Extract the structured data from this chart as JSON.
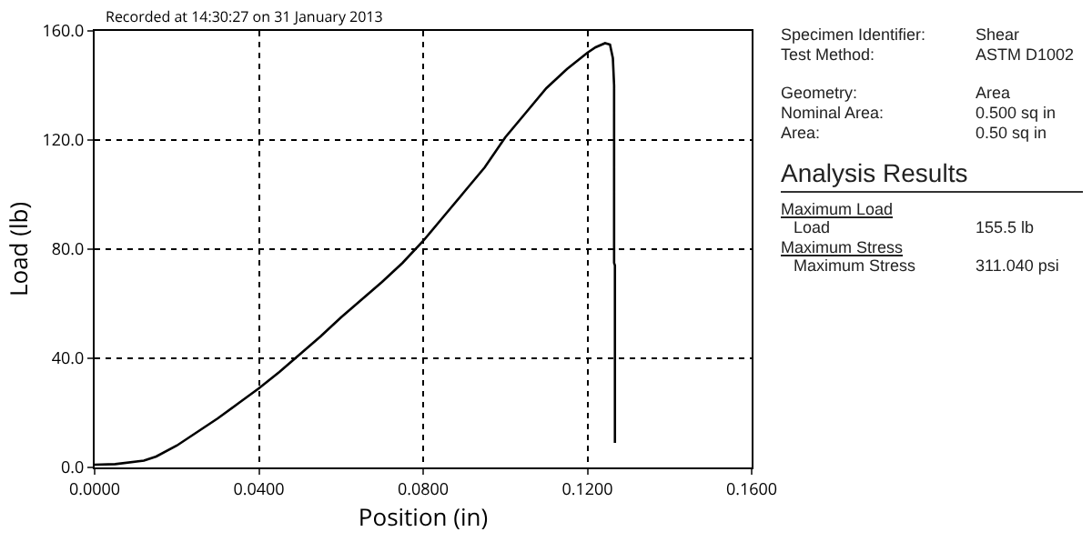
{
  "chart_data": [
    {
      "type": "line",
      "xlabel": "Position (in)",
      "ylabel": "Load (lb)",
      "annotations": [
        "Recorded at 14:30:27 on 31 January 2013"
      ],
      "x": [
        0,
        0.005,
        0.012,
        0.015,
        0.02,
        0.025,
        0.03,
        0.035,
        0.04,
        0.045,
        0.05,
        0.055,
        0.06,
        0.065,
        0.07,
        0.075,
        0.08,
        0.085,
        0.09,
        0.095,
        0.1,
        0.105,
        0.11,
        0.115,
        0.12,
        0.122,
        0.1243,
        0.1255,
        0.1262,
        0.1265,
        0.1265,
        0.1267,
        0.1267
      ],
      "series": [
        {
          "color": "#000000",
          "values": [
            1,
            1.2,
            2.5,
            4,
            8,
            13,
            18,
            23.5,
            29,
            35,
            41.5,
            48,
            55,
            61.5,
            68,
            75,
            83,
            92,
            101,
            110,
            121,
            130,
            139,
            146,
            152,
            154,
            155.5,
            155,
            150,
            140,
            75,
            74,
            9
          ]
        }
      ],
      "xlim": [
        0,
        0.16
      ],
      "xticks": [
        {
          "value": 0,
          "label": "0.0000"
        },
        {
          "value": 0.04,
          "label": "0.0400"
        },
        {
          "value": 0.08,
          "label": "0.0800"
        },
        {
          "value": 0.12,
          "label": "0.1200"
        },
        {
          "value": 0.16,
          "label": "0.1600"
        }
      ],
      "ylim": [
        0,
        160
      ],
      "yticks": [
        {
          "value": 0,
          "label": "0.0"
        },
        {
          "value": 40,
          "label": "40.0"
        },
        {
          "value": 80,
          "label": "80.0"
        },
        {
          "value": 120,
          "label": "120.0"
        },
        {
          "value": 160,
          "label": "160.0"
        }
      ],
      "grid": true,
      "marker": "none",
      "line_style": "solid"
    },
    {
      "type": "other",
      "title": "Analysis Results",
      "annotations": [
        "Specimen Identifier:",
        "Shear",
        "Test Method:",
        "ASTM D1002",
        "Geometry:",
        "Area",
        "Nominal Area:",
        "0.500 sq in",
        "Area:",
        "0.50 sq in",
        "Maximum Load",
        "Load",
        "155.5 lb",
        "Maximum Stress",
        "Maximum Stress",
        "311.040 psi"
      ]
    }
  ]
}
